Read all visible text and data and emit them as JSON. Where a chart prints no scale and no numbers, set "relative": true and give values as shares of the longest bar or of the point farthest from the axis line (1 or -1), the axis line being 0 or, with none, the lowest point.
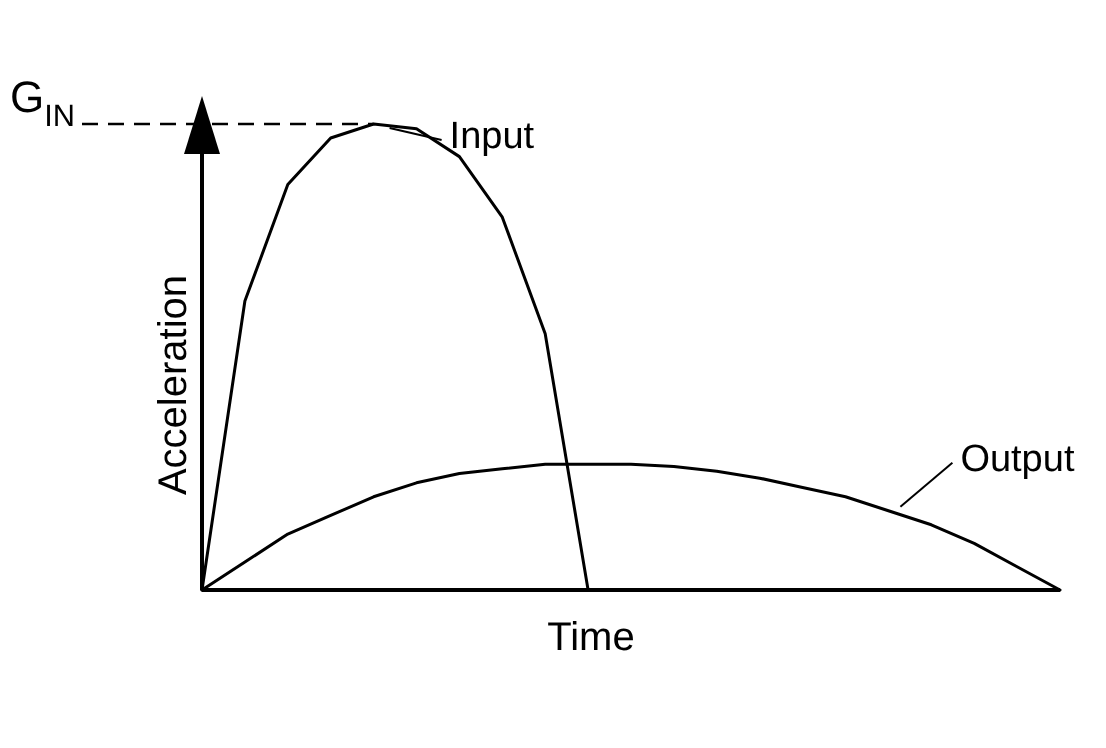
{
  "chart_data": {
    "type": "line",
    "relative": true,
    "xlabel": "Time",
    "ylabel": "Acceleration",
    "marker": "none",
    "legend": "right",
    "line_style": "solid",
    "categories": [
      null,
      null,
      null,
      null,
      null,
      null,
      null,
      null,
      null,
      null,
      null,
      null,
      null,
      null,
      null,
      null,
      null,
      null,
      null,
      null,
      null
    ],
    "series": [
      {
        "name": "Input",
        "color": "#000000",
        "values": [
          0,
          0.62,
          0.87,
          0.97,
          1,
          0.99,
          0.93,
          0.8,
          0.55,
          0,
          null,
          null,
          null,
          null,
          null,
          null,
          null,
          null,
          null,
          null,
          null
        ]
      },
      {
        "name": "Output",
        "color": "#000000",
        "values": [
          0,
          0.06,
          0.12,
          0.16,
          0.2,
          0.23,
          0.25,
          0.26,
          0.27,
          0.27,
          0.27,
          0.265,
          0.255,
          0.24,
          0.22,
          0.2,
          0.17,
          0.14,
          0.1,
          0.05,
          0
        ]
      }
    ],
    "ref_lines": [
      {
        "axis": "y",
        "value": 1,
        "label": "G$_{IN}$",
        "line_style": "dashed",
        "color": "#000000"
      }
    ]
  }
}
